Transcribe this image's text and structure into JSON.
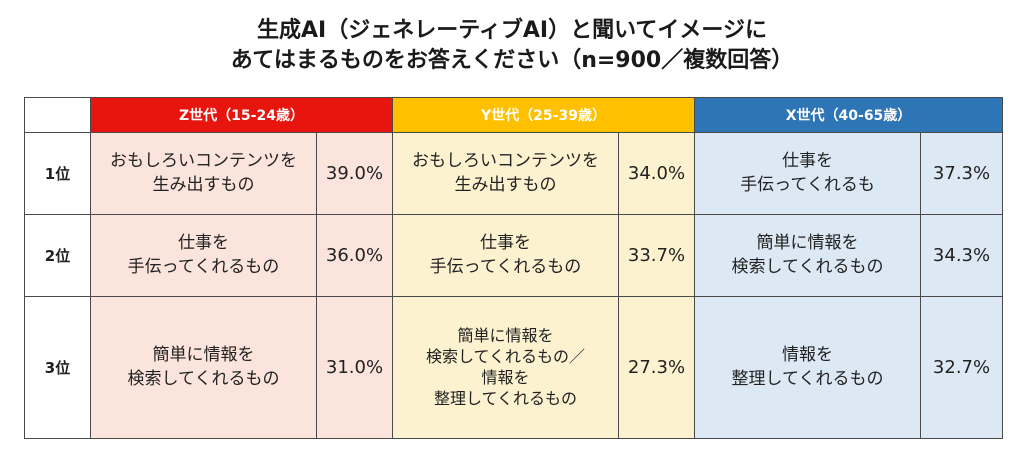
{
  "title": {
    "line1": "生成AI（ジェネレーティブAI）と聞いてイメージに",
    "line2": "あてはまるものをお答えください（n=900／複数回答）"
  },
  "generations": [
    {
      "label": "Z世代（15-24歳）",
      "color": "#e8150f",
      "cell_color": "#fbe4dc"
    },
    {
      "label": "Y世代（25-39歳）",
      "color": "#ffc000",
      "cell_color": "#fdf2d0"
    },
    {
      "label": "X世代（40-65歳）",
      "color": "#2e75b6",
      "cell_color": "#dce9f5"
    }
  ],
  "rows": [
    {
      "rank": "1位",
      "cells": [
        {
          "lines": [
            "おもしろいコンテンツを",
            "生み出すもの"
          ],
          "pct": "39.0%"
        },
        {
          "lines": [
            "おもしろいコンテンツを",
            "生み出すもの"
          ],
          "pct": "34.0%"
        },
        {
          "lines": [
            "仕事を",
            "手伝ってくれるも"
          ],
          "pct": "37.3%"
        }
      ]
    },
    {
      "rank": "2位",
      "cells": [
        {
          "lines": [
            "仕事を",
            "手伝ってくれるもの"
          ],
          "pct": "36.0%"
        },
        {
          "lines": [
            "仕事を",
            "手伝ってくれるもの"
          ],
          "pct": "33.7%"
        },
        {
          "lines": [
            "簡単に情報を",
            "検索してくれるもの"
          ],
          "pct": "34.3%"
        }
      ]
    },
    {
      "rank": "3位",
      "cells": [
        {
          "lines": [
            "簡単に情報を",
            "検索してくれるもの"
          ],
          "pct": "31.0%"
        },
        {
          "lines": [
            "簡単に情報を",
            "検索してくれるもの／",
            "情報を",
            "整理してくれるもの"
          ],
          "pct": "27.3%"
        },
        {
          "lines": [
            "情報を",
            "整理してくれるもの"
          ],
          "pct": "32.7%"
        }
      ]
    }
  ]
}
